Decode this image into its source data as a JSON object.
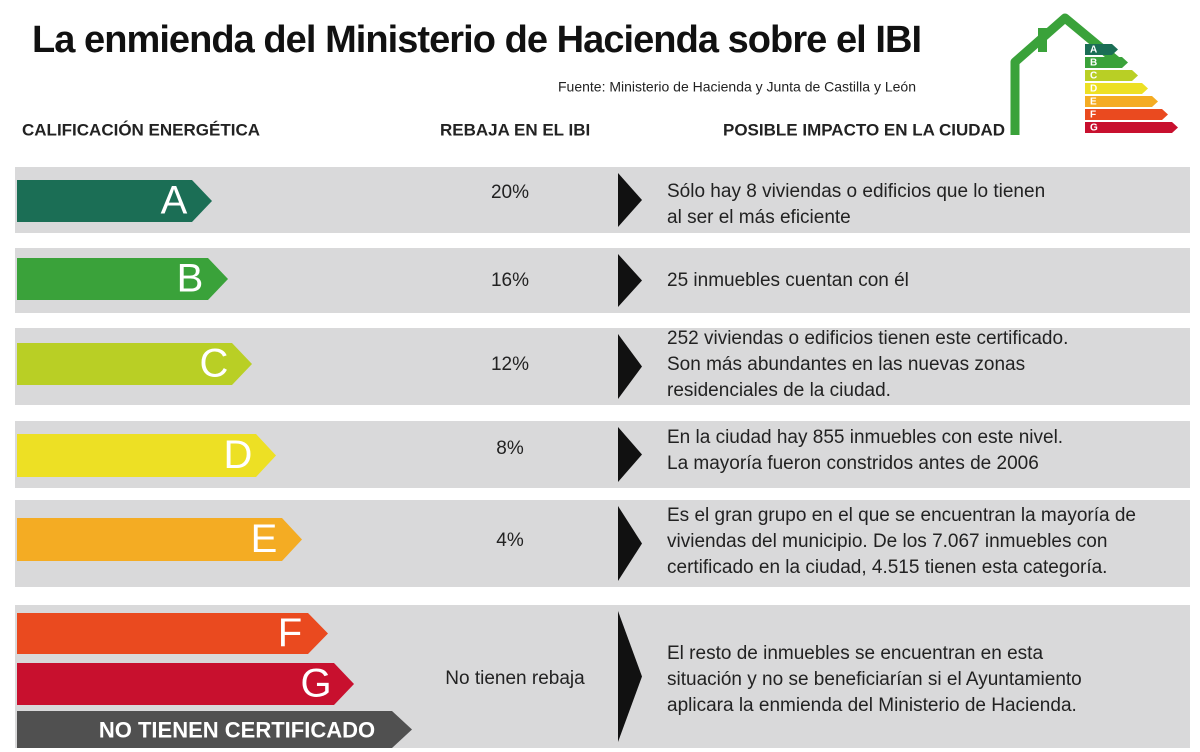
{
  "header": {
    "title": "La enmienda del Ministerio de Hacienda sobre el IBI",
    "source": "Fuente: Ministerio de Hacienda y Junta de Castilla y León",
    "icon_letters": [
      "A",
      "B",
      "C",
      "D",
      "E",
      "F",
      "G"
    ]
  },
  "columns": [
    "CALIFICACIÓN ENERGÉTICA",
    "REBAJA EN EL IBI",
    "POSIBLE IMPACTO EN LA CIUDAD"
  ],
  "rows": [
    {
      "labels": [
        "A"
      ],
      "rebate": "20%",
      "impact": [
        "Sólo hay 8 viviendas o edificios que lo tienen",
        "al ser el más eficiente"
      ]
    },
    {
      "labels": [
        "B"
      ],
      "rebate": "16%",
      "impact": [
        "25 inmuebles cuentan con él"
      ]
    },
    {
      "labels": [
        "C"
      ],
      "rebate": "12%",
      "impact": [
        "252 viviendas o edificios tienen este certificado.",
        "Son más abundantes en las nuevas zonas",
        "residenciales de la ciudad."
      ]
    },
    {
      "labels": [
        "D"
      ],
      "rebate": "8%",
      "impact": [
        "En la ciudad hay 855 inmuebles con este nivel.",
        "La mayoría fueron constridos antes de 2006"
      ]
    },
    {
      "labels": [
        "E"
      ],
      "rebate": "4%",
      "impact": [
        "Es el gran grupo en el que se encuentran la mayoría de",
        "viviendas del municipio. De los 7.067 inmuebles con",
        "certificado en la ciudad, 4.515 tienen esta categoría."
      ]
    },
    {
      "labels": [
        "F",
        "G",
        "NO TIENEN CERTIFICADO"
      ],
      "rebate": "No tienen rebaja",
      "impact": [
        "El resto de inmuebles se encuentran en esta",
        "situación y no se beneficiarían si el Ayuntamiento",
        "aplicara la enmienda del Ministerio de Hacienda."
      ]
    }
  ]
}
